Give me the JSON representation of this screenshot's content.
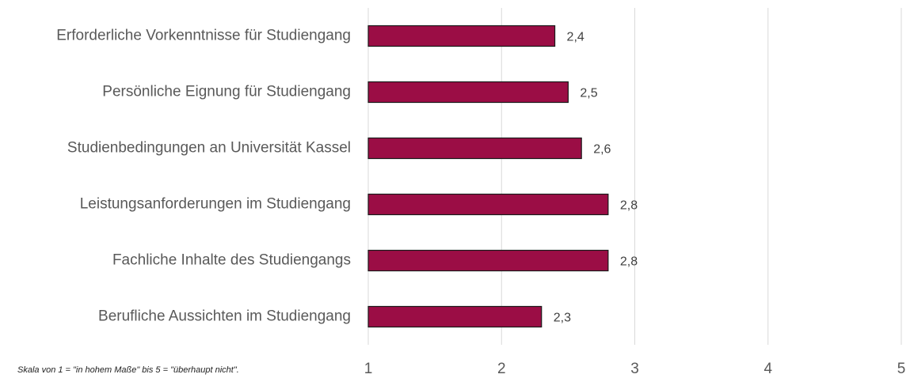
{
  "chart_data": {
    "type": "bar",
    "orientation": "horizontal",
    "categories": [
      "Erforderliche Vorkenntnisse für Studiengang",
      "Persönliche Eignung für Studiengang",
      "Studienbedingungen an Universität Kassel",
      "Leistungsanforderungen im Studiengang",
      "Fachliche Inhalte des Studiengangs",
      "Berufliche Aussichten im Studiengang"
    ],
    "values": [
      2.4,
      2.5,
      2.6,
      2.8,
      2.8,
      2.3
    ],
    "value_labels": [
      "2,4",
      "2,5",
      "2,6",
      "2,8",
      "2,8",
      "2,3"
    ],
    "color": "#9b0d45",
    "xlim": [
      1,
      5
    ],
    "xticks": [
      1,
      2,
      3,
      4,
      5
    ],
    "grid": true,
    "note": "Skala von 1 = \"in hohem Maße\" bis 5 = \"überhaupt nicht\"."
  }
}
